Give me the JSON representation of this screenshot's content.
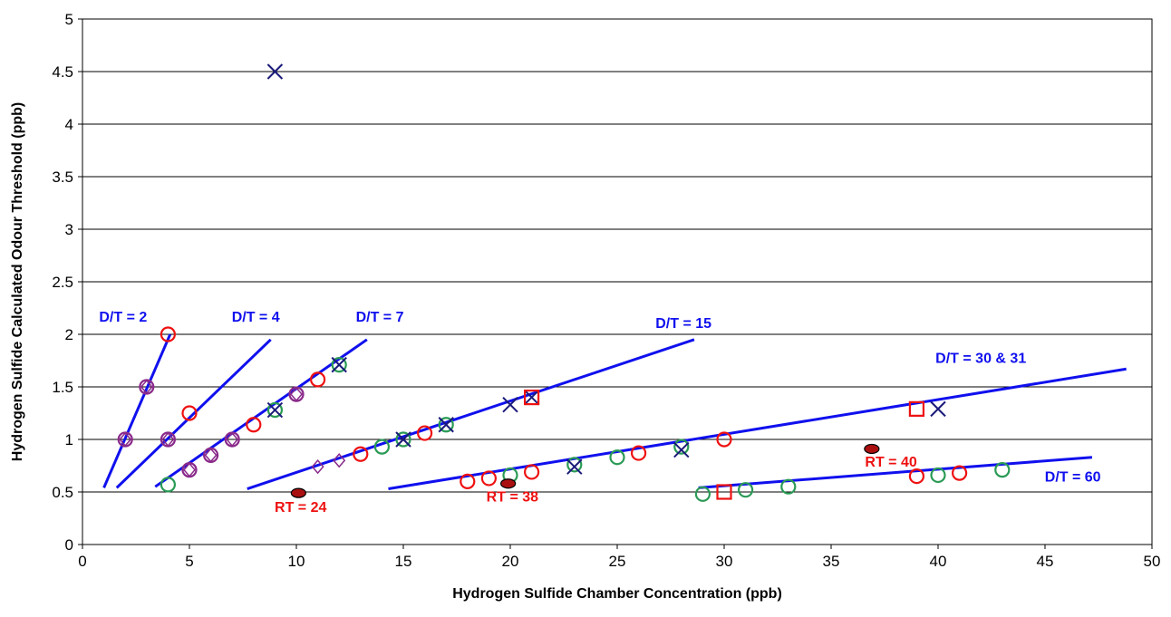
{
  "chart_data": {
    "type": "scatter",
    "xlabel": "Hydrogen Sulfide Chamber Concentration (ppb)",
    "ylabel": "Hydrogen Sulfide Calculated Odour Threshold (ppb)",
    "xlim": [
      0,
      50
    ],
    "ylim": [
      0,
      5
    ],
    "xticks": [
      "0",
      "5",
      "10",
      "15",
      "20",
      "25",
      "30",
      "35",
      "40",
      "45",
      "50"
    ],
    "yticks": [
      "0",
      "0.5",
      "1",
      "1.5",
      "2",
      "2.5",
      "3",
      "3.5",
      "4",
      "4.5",
      "5"
    ],
    "grid": "horizontal",
    "colors": {
      "trend": "#1010ee",
      "red": "#ee1111",
      "green": "#2a9a55",
      "navy": "#1a1a7a",
      "purple": "#8a2a8a",
      "dark_red": "#aa1010"
    },
    "trend_lines": [
      {
        "label": "D/T = 2",
        "x": [
          1,
          4.1
        ],
        "y": [
          0.54,
          2.0
        ]
      },
      {
        "label": "D/T = 4",
        "x": [
          1.6,
          8.8
        ],
        "y": [
          0.54,
          1.95
        ]
      },
      {
        "label": "D/T = 7",
        "x": [
          3.4,
          13.3
        ],
        "y": [
          0.55,
          1.95
        ]
      },
      {
        "label": "D/T = 15",
        "x": [
          7.7,
          28.6
        ],
        "y": [
          0.53,
          1.95
        ]
      },
      {
        "label": "D/T = 30 & 31",
        "x": [
          14.3,
          48.8
        ],
        "y": [
          0.53,
          1.67
        ]
      },
      {
        "label": "D/T = 60",
        "x": [
          28.8,
          47.2
        ],
        "y": [
          0.54,
          0.83
        ]
      }
    ],
    "line_labels": [
      {
        "text": "D/T = 2",
        "x": 1.9,
        "y": 2.12
      },
      {
        "text": "D/T = 4",
        "x": 8.1,
        "y": 2.12
      },
      {
        "text": "D/T = 7",
        "x": 13.9,
        "y": 2.12
      },
      {
        "text": "D/T = 15",
        "x": 28.1,
        "y": 2.06
      },
      {
        "text": "D/T = 30 & 31",
        "x": 42.0,
        "y": 1.73
      },
      {
        "text": "D/T = 60",
        "x": 46.3,
        "y": 0.6
      }
    ],
    "rt_labels": [
      {
        "text": "RT = 24",
        "x": 10.2,
        "y": 0.31
      },
      {
        "text": "RT = 38",
        "x": 20.1,
        "y": 0.41
      },
      {
        "text": "RT = 40",
        "x": 37.8,
        "y": 0.74
      }
    ],
    "series": [
      {
        "marker": "circle",
        "color": "red",
        "points": [
          [
            4,
            2
          ],
          [
            5,
            1.25
          ],
          [
            8,
            1.14
          ],
          [
            11,
            1.57
          ],
          [
            13,
            0.86
          ],
          [
            16,
            1.06
          ],
          [
            18,
            0.6
          ],
          [
            19,
            0.63
          ],
          [
            21,
            0.69
          ],
          [
            26,
            0.87
          ],
          [
            30,
            1.0
          ],
          [
            39,
            0.65
          ],
          [
            41,
            0.68
          ]
        ]
      },
      {
        "marker": "circle",
        "color": "green",
        "points": [
          [
            4,
            0.57
          ],
          [
            9,
            1.28
          ],
          [
            12,
            1.71
          ],
          [
            14,
            0.93
          ],
          [
            15,
            1.0
          ],
          [
            17,
            1.14
          ],
          [
            20,
            0.66
          ],
          [
            23,
            0.76
          ],
          [
            25,
            0.83
          ],
          [
            28,
            0.93
          ],
          [
            29,
            0.48
          ],
          [
            31,
            0.52
          ],
          [
            33,
            0.55
          ],
          [
            40,
            0.66
          ],
          [
            43,
            0.71
          ]
        ]
      },
      {
        "marker": "circle",
        "color": "purple",
        "points": [
          [
            2,
            1.0
          ],
          [
            3,
            1.5
          ],
          [
            4,
            1.0
          ],
          [
            5,
            0.71
          ],
          [
            6,
            0.85
          ],
          [
            7,
            1.0
          ],
          [
            10,
            1.43
          ]
        ]
      },
      {
        "marker": "x",
        "color": "navy",
        "points": [
          [
            9,
            4.5
          ],
          [
            9,
            1.28
          ],
          [
            12,
            1.71
          ],
          [
            15,
            1.0
          ],
          [
            17,
            1.14
          ],
          [
            20,
            1.33
          ],
          [
            21,
            1.4
          ],
          [
            23,
            0.74
          ],
          [
            28,
            0.9
          ],
          [
            40,
            1.29
          ]
        ]
      },
      {
        "marker": "square",
        "color": "red",
        "points": [
          [
            21,
            1.4
          ],
          [
            30,
            0.5
          ],
          [
            39,
            1.29
          ]
        ]
      },
      {
        "marker": "diamond",
        "color": "purple",
        "points": [
          [
            2,
            1.0
          ],
          [
            3,
            1.5
          ],
          [
            4,
            1.0
          ],
          [
            5,
            0.71
          ],
          [
            6,
            0.85
          ],
          [
            7,
            1.0
          ],
          [
            10,
            1.43
          ],
          [
            11,
            0.74
          ],
          [
            12,
            0.8
          ]
        ]
      },
      {
        "marker": "ellipse",
        "color": "dark_red",
        "points": [
          [
            10.1,
            0.49
          ],
          [
            19.9,
            0.58
          ],
          [
            36.9,
            0.91
          ]
        ]
      }
    ]
  }
}
